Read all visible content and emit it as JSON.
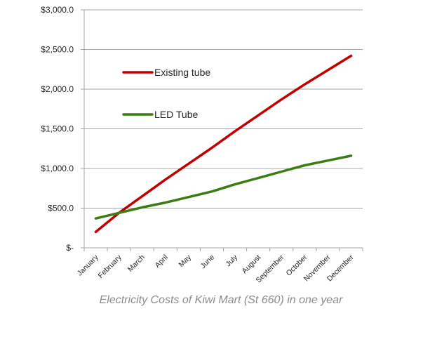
{
  "chart_data": {
    "type": "line",
    "title": "",
    "xlabel": "Electricity Costs of Kiwi Mart (St 660) in one year",
    "ylabel": "",
    "categories": [
      "January",
      "February",
      "March",
      "April",
      "May",
      "June",
      "July",
      "August",
      "September",
      "October",
      "November",
      "December"
    ],
    "ylim": [
      0,
      3000
    ],
    "yticks": [
      0,
      500,
      1000,
      1500,
      2000,
      2500,
      3000
    ],
    "ytick_labels": [
      "$-",
      "$500.0",
      "$1,000.0",
      "$1,500.0",
      "$2,000.0",
      "$2,500.0",
      "$3,000.0"
    ],
    "grid": true,
    "legend_position": "upper-left-inside",
    "series": [
      {
        "name": "Existing tube",
        "color": "#c00000",
        "values": [
          200,
          440,
          650,
          860,
          1060,
          1260,
          1470,
          1670,
          1870,
          2060,
          2240,
          2420
        ]
      },
      {
        "name": "LED Tube",
        "color": "#3a7d14",
        "values": [
          370,
          440,
          510,
          570,
          640,
          710,
          800,
          880,
          960,
          1040,
          1100,
          1160
        ]
      }
    ]
  }
}
